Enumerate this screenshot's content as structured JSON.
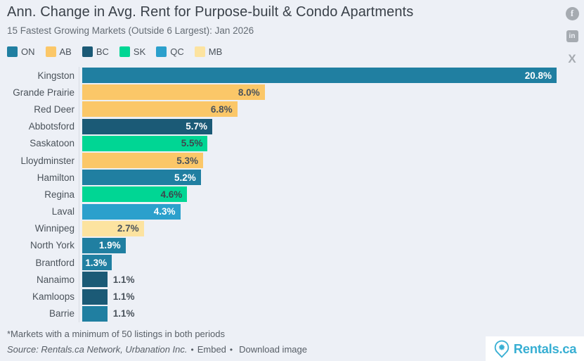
{
  "header": {
    "title": "Ann. Change in Avg. Rent for Purpose-built & Condo Apartments",
    "subtitle": "15 Fastest Growing Markets (Outside 6 Largest): Jan 2026"
  },
  "social": {
    "facebook_glyph": "f",
    "linkedin_glyph": "in",
    "x_glyph": "X"
  },
  "chart_data": {
    "type": "bar",
    "orientation": "horizontal",
    "title": "Ann. Change in Avg. Rent for Purpose-built & Condo Apartments",
    "subtitle": "15 Fastest Growing Markets (Outside 6 Largest): Jan 2026",
    "xlim": [
      0,
      21.7
    ],
    "grid": false,
    "legend_position": "top-left",
    "legend": [
      "ON",
      "AB",
      "BC",
      "SK",
      "QC",
      "MB"
    ],
    "provinces": {
      "ON": {
        "color": "#207fa1",
        "value_text": "#ffffff"
      },
      "AB": {
        "color": "#fbc768",
        "value_text": "#49525b"
      },
      "BC": {
        "color": "#1b5a76",
        "value_text": "#ffffff"
      },
      "SK": {
        "color": "#00d694",
        "value_text": "#3d474e"
      },
      "QC": {
        "color": "#2ba0cc",
        "value_text": "#ffffff"
      },
      "MB": {
        "color": "#fce3a0",
        "value_text": "#49525b"
      }
    },
    "bars": [
      {
        "market": "Kingston",
        "value": 20.8,
        "label": "20.8%",
        "province": "ON",
        "value_label_position": "inside"
      },
      {
        "market": "Grande Prairie",
        "value": 8.0,
        "label": "8.0%",
        "province": "AB",
        "value_label_position": "inside"
      },
      {
        "market": "Red Deer",
        "value": 6.8,
        "label": "6.8%",
        "province": "AB",
        "value_label_position": "inside"
      },
      {
        "market": "Abbotsford",
        "value": 5.7,
        "label": "5.7%",
        "province": "BC",
        "value_label_position": "inside"
      },
      {
        "market": "Saskatoon",
        "value": 5.5,
        "label": "5.5%",
        "province": "SK",
        "value_label_position": "inside"
      },
      {
        "market": "Lloydminster",
        "value": 5.3,
        "label": "5.3%",
        "province": "AB",
        "value_label_position": "inside"
      },
      {
        "market": "Hamilton",
        "value": 5.2,
        "label": "5.2%",
        "province": "ON",
        "value_label_position": "inside"
      },
      {
        "market": "Regina",
        "value": 4.6,
        "label": "4.6%",
        "province": "SK",
        "value_label_position": "inside"
      },
      {
        "market": "Laval",
        "value": 4.3,
        "label": "4.3%",
        "province": "QC",
        "value_label_position": "inside"
      },
      {
        "market": "Winnipeg",
        "value": 2.7,
        "label": "2.7%",
        "province": "MB",
        "value_label_position": "inside"
      },
      {
        "market": "North York",
        "value": 1.9,
        "label": "1.9%",
        "province": "ON",
        "value_label_position": "inside"
      },
      {
        "market": "Brantford",
        "value": 1.3,
        "label": "1.3%",
        "province": "ON",
        "value_label_position": "inside"
      },
      {
        "market": "Nanaimo",
        "value": 1.1,
        "label": "1.1%",
        "province": "BC",
        "value_label_position": "outside"
      },
      {
        "market": "Kamloops",
        "value": 1.1,
        "label": "1.1%",
        "province": "BC",
        "value_label_position": "outside"
      },
      {
        "market": "Barrie",
        "value": 1.1,
        "label": "1.1%",
        "province": "ON",
        "value_label_position": "outside"
      }
    ]
  },
  "footer": {
    "note": "*Markets with a minimum of 50 listings in both periods",
    "source": "Source: Rentals.ca Network, Urbanation Inc.",
    "bullet": "•",
    "embed_link": "Embed",
    "download_link": "Download image",
    "logo_text": "Rentals.ca"
  },
  "colors": {
    "background": "#edf0f6",
    "title": "#3a4149",
    "subtitle": "#646c74",
    "axis_line": "#d8dce3",
    "footer_text": "#575e66",
    "social_icon": "#a6abb1",
    "logo_blue": "#38afd3"
  }
}
